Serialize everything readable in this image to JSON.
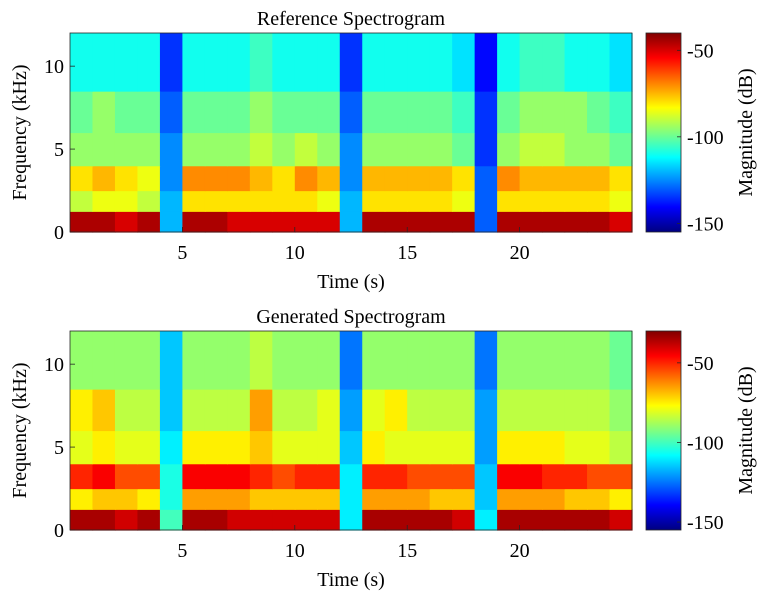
{
  "chart_data": [
    {
      "type": "heatmap",
      "title": "Reference Spectrogram",
      "xlabel": "Time (s)",
      "ylabel": "Frequency (kHz)",
      "xlim": [
        0,
        25
      ],
      "ylim": [
        0,
        12
      ],
      "xticks": [
        5,
        10,
        15,
        20
      ],
      "yticks": [
        0,
        5,
        10
      ],
      "colorbar": {
        "label": "Magnitude (dB)",
        "range": [
          -155,
          -40
        ],
        "ticks": [
          -50,
          -100,
          -150
        ],
        "colormap": "jet"
      },
      "time_bins": [
        0.5,
        1.5,
        2.5,
        3.5,
        4.5,
        5.5,
        6.5,
        7.5,
        8.5,
        9.5,
        10.5,
        11.5,
        12.5,
        13.5,
        14.5,
        15.5,
        16.5,
        17.5,
        18.5,
        19.5,
        20.5,
        21.5,
        22.5,
        23.5,
        24.5
      ],
      "freq_bins": [
        0.5,
        2.0,
        3.0,
        5.0,
        7.0,
        10.0
      ],
      "z_db": [
        [
          -45,
          -45,
          -50,
          -45,
          -120,
          -45,
          -45,
          -50,
          -50,
          -50,
          -50,
          -50,
          -120,
          -45,
          -45,
          -45,
          -45,
          -45,
          -130,
          -45,
          -45,
          -45,
          -45,
          -45,
          -50
        ],
        [
          -90,
          -85,
          -85,
          -90,
          -120,
          -80,
          -80,
          -80,
          -80,
          -80,
          -80,
          -85,
          -120,
          -80,
          -80,
          -80,
          -80,
          -85,
          -130,
          -80,
          -80,
          -80,
          -80,
          -80,
          -85
        ],
        [
          -80,
          -75,
          -80,
          -85,
          -125,
          -70,
          -70,
          -70,
          -75,
          -80,
          -70,
          -75,
          -125,
          -75,
          -75,
          -75,
          -75,
          -80,
          -130,
          -70,
          -75,
          -75,
          -75,
          -75,
          -80
        ],
        [
          -95,
          -95,
          -95,
          -95,
          -125,
          -95,
          -95,
          -95,
          -90,
          -95,
          -90,
          -95,
          -125,
          -95,
          -95,
          -95,
          -95,
          -100,
          -135,
          -95,
          -90,
          -90,
          -95,
          -95,
          -100
        ],
        [
          -100,
          -95,
          -100,
          -100,
          -130,
          -100,
          -100,
          -100,
          -95,
          -100,
          -100,
          -100,
          -130,
          -100,
          -100,
          -100,
          -100,
          -105,
          -135,
          -100,
          -95,
          -95,
          -95,
          -100,
          -105
        ],
        [
          -110,
          -110,
          -110,
          -110,
          -135,
          -110,
          -110,
          -110,
          -105,
          -110,
          -110,
          -110,
          -135,
          -110,
          -110,
          -110,
          -110,
          -115,
          -140,
          -110,
          -105,
          -105,
          -110,
          -110,
          -115
        ]
      ]
    },
    {
      "type": "heatmap",
      "title": "Generated Spectrogram",
      "xlabel": "Time (s)",
      "ylabel": "Frequency (kHz)",
      "xlim": [
        0,
        25
      ],
      "ylim": [
        0,
        12
      ],
      "xticks": [
        5,
        10,
        15,
        20
      ],
      "yticks": [
        0,
        5,
        10
      ],
      "colorbar": {
        "label": "Magnitude (dB)",
        "range": [
          -155,
          -30
        ],
        "ticks": [
          -50,
          -100,
          -150
        ],
        "colormap": "jet"
      },
      "time_bins": [
        0.5,
        1.5,
        2.5,
        3.5,
        4.5,
        5.5,
        6.5,
        7.5,
        8.5,
        9.5,
        10.5,
        11.5,
        12.5,
        13.5,
        14.5,
        15.5,
        16.5,
        17.5,
        18.5,
        19.5,
        20.5,
        21.5,
        22.5,
        23.5,
        24.5
      ],
      "freq_bins": [
        0.5,
        2.0,
        3.0,
        5.0,
        7.0,
        10.0
      ],
      "z_db": [
        [
          -35,
          -35,
          -40,
          -35,
          -100,
          -35,
          -35,
          -40,
          -40,
          -40,
          -40,
          -40,
          -110,
          -35,
          -35,
          -35,
          -35,
          -40,
          -110,
          -35,
          -35,
          -35,
          -35,
          -35,
          -40
        ],
        [
          -75,
          -70,
          -70,
          -75,
          -105,
          -65,
          -65,
          -65,
          -70,
          -70,
          -70,
          -70,
          -110,
          -65,
          -65,
          -65,
          -70,
          -70,
          -115,
          -65,
          -65,
          -65,
          -70,
          -70,
          -75
        ],
        [
          -50,
          -45,
          -55,
          -55,
          -105,
          -45,
          -45,
          -45,
          -50,
          -55,
          -50,
          -50,
          -110,
          -50,
          -50,
          -55,
          -55,
          -55,
          -115,
          -45,
          -45,
          -50,
          -50,
          -55,
          -55
        ],
        [
          -80,
          -75,
          -80,
          -80,
          -110,
          -75,
          -75,
          -75,
          -70,
          -80,
          -80,
          -80,
          -115,
          -75,
          -80,
          -80,
          -80,
          -80,
          -120,
          -75,
          -75,
          -75,
          -80,
          -80,
          -85
        ],
        [
          -75,
          -70,
          -85,
          -85,
          -115,
          -85,
          -85,
          -85,
          -65,
          -85,
          -85,
          -80,
          -120,
          -80,
          -75,
          -85,
          -85,
          -85,
          -120,
          -85,
          -85,
          -85,
          -85,
          -85,
          -90
        ],
        [
          -90,
          -90,
          -90,
          -90,
          -115,
          -90,
          -90,
          -90,
          -85,
          -90,
          -90,
          -90,
          -125,
          -90,
          -90,
          -90,
          -90,
          -90,
          -125,
          -90,
          -90,
          -90,
          -90,
          -90,
          -95
        ]
      ]
    }
  ]
}
